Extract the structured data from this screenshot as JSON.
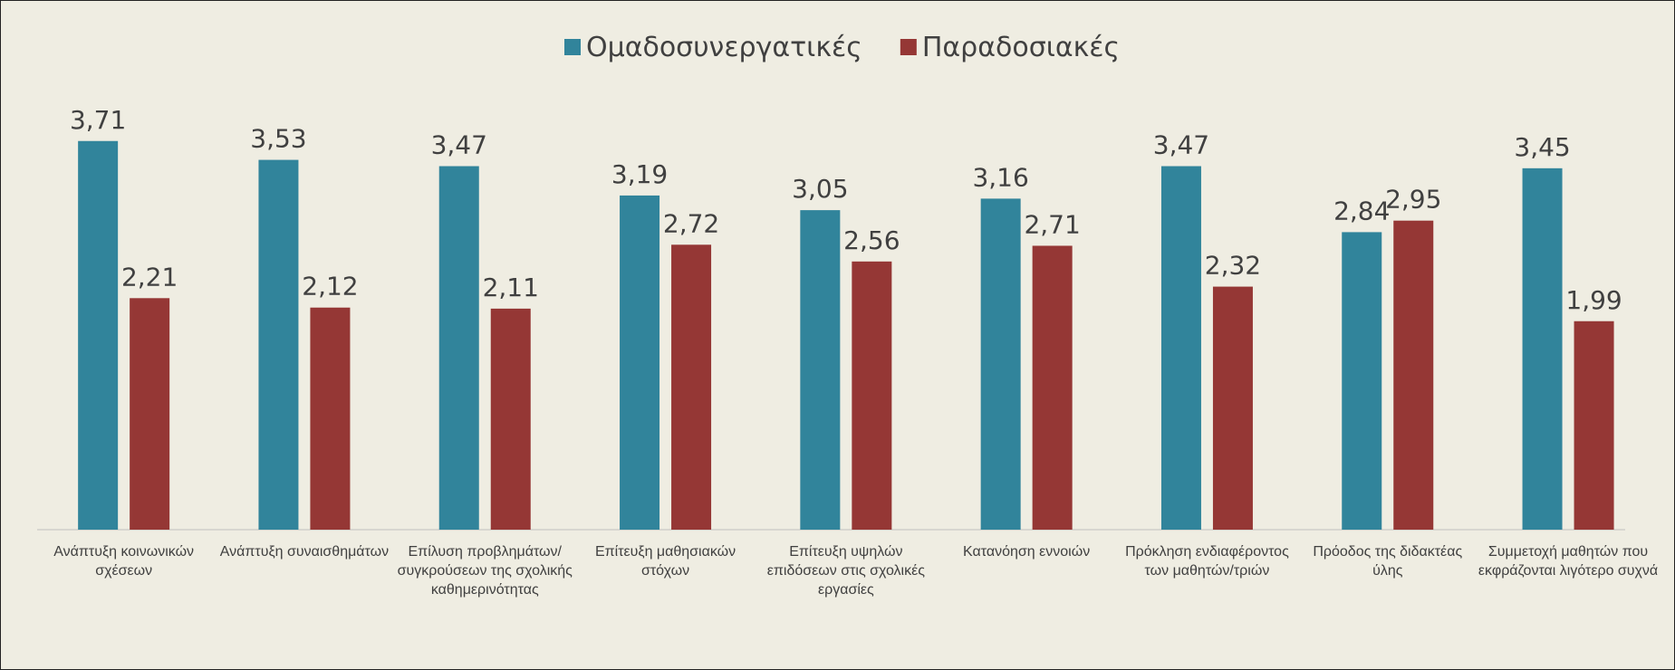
{
  "chart_data": {
    "type": "bar",
    "categories": [
      "Ανάπτυξη κοινωνικών σχέσεων",
      "Ανάπτυξη συναισθημάτων",
      "Επίλυση προβλημάτων/συγκρούσεων της σχολικής καθημερινότητας",
      "Επίτευξη μαθησιακών στόχων",
      "Επίτευξη υψηλών επιδόσεων στις σχολικές εργασίες",
      "Κατανόηση εννοιών",
      "Πρόκληση ενδιαφέροντος των μαθητών/τριών",
      "Πρόοδος της διδακτέας ύλης",
      "Συμμετοχή μαθητών που εκφράζονται λιγότερο συχνά"
    ],
    "series": [
      {
        "name": "Ομαδοσυνεργατικές",
        "color": "#31849b",
        "values": [
          3.71,
          3.53,
          3.47,
          3.19,
          3.05,
          3.16,
          3.47,
          2.84,
          3.45
        ],
        "value_labels": [
          "3,71",
          "3,53",
          "3,47",
          "3,19",
          "3,05",
          "3,16",
          "3,47",
          "2,84",
          "3,45"
        ]
      },
      {
        "name": "Παραδοσιακές",
        "color": "#953735",
        "values": [
          2.21,
          2.12,
          2.11,
          2.72,
          2.56,
          2.71,
          2.32,
          2.95,
          1.99
        ],
        "value_labels": [
          "2,21",
          "2,12",
          "2,11",
          "2,72",
          "2,56",
          "2,71",
          "2,32",
          "2,95",
          "1,99"
        ]
      }
    ],
    "legend": "top"
  }
}
